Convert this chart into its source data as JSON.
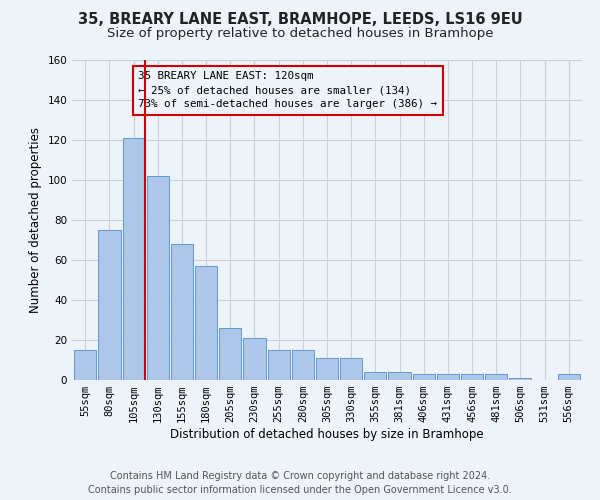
{
  "title": "35, BREARY LANE EAST, BRAMHOPE, LEEDS, LS16 9EU",
  "subtitle": "Size of property relative to detached houses in Bramhope",
  "xlabel": "Distribution of detached houses by size in Bramhope",
  "ylabel": "Number of detached properties",
  "bar_labels": [
    "55sqm",
    "80sqm",
    "105sqm",
    "130sqm",
    "155sqm",
    "180sqm",
    "205sqm",
    "230sqm",
    "255sqm",
    "280sqm",
    "305sqm",
    "330sqm",
    "355sqm",
    "381sqm",
    "406sqm",
    "431sqm",
    "456sqm",
    "481sqm",
    "506sqm",
    "531sqm",
    "556sqm"
  ],
  "bar_values": [
    15,
    75,
    121,
    102,
    68,
    57,
    26,
    21,
    15,
    15,
    11,
    11,
    4,
    4,
    3,
    3,
    3,
    3,
    1,
    0,
    3
  ],
  "bar_color": "#aec6e8",
  "bar_edgecolor": "#5b9bd5",
  "ylim": [
    0,
    160
  ],
  "yticks": [
    0,
    20,
    40,
    60,
    80,
    100,
    120,
    140,
    160
  ],
  "marker_color": "#cc0000",
  "annotation_title": "35 BREARY LANE EAST: 120sqm",
  "annotation_line1": "← 25% of detached houses are smaller (134)",
  "annotation_line2": "73% of semi-detached houses are larger (386) →",
  "footer_line1": "Contains HM Land Registry data © Crown copyright and database right 2024.",
  "footer_line2": "Contains public sector information licensed under the Open Government Licence v3.0.",
  "background_color": "#eef2f9",
  "grid_color": "#c8d0e0",
  "title_fontsize": 10.5,
  "subtitle_fontsize": 9.5,
  "axis_label_fontsize": 8.5,
  "tick_fontsize": 7.5,
  "footer_fontsize": 7.0,
  "annotation_fontsize": 7.8
}
